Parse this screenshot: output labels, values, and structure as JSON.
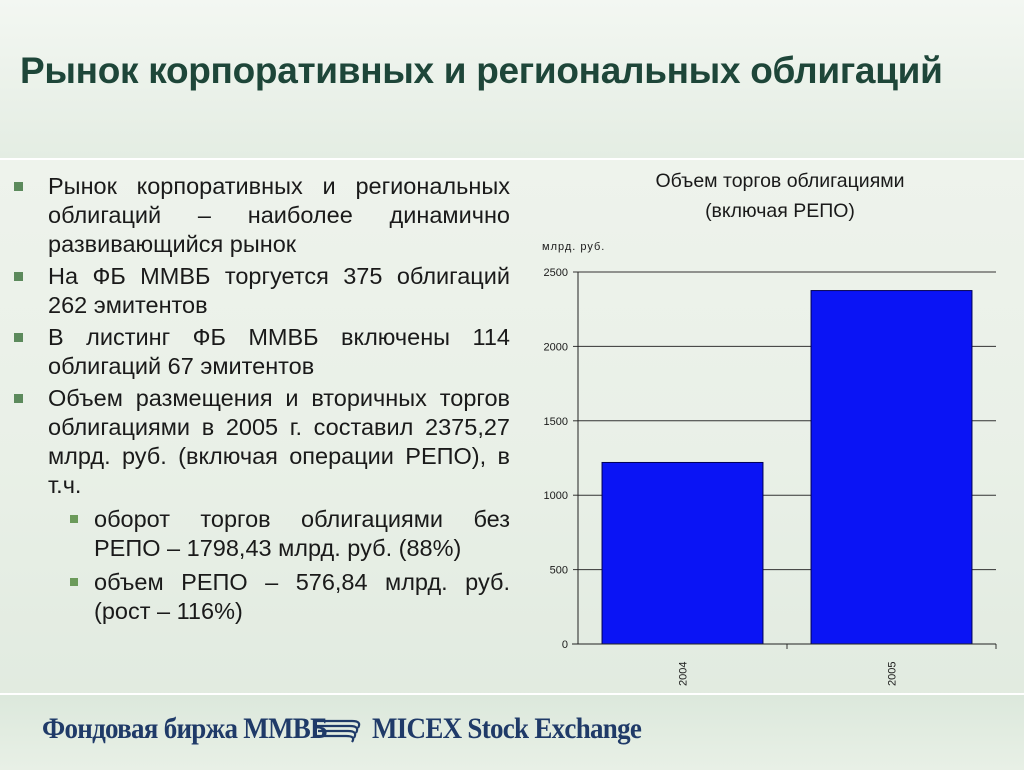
{
  "slide": {
    "title": "Рынок корпоративных и региональных облигаций",
    "bullets": [
      {
        "text": "Рынок корпоративных и региональных облигаций – наиболее динамично развивающийся рынок"
      },
      {
        "text": "На ФБ ММВБ торгуется 375 облигаций 262 эмитентов"
      },
      {
        "text": "В листинг ФБ ММВБ включены 114 облигаций 67 эмитентов"
      },
      {
        "text": "Объем размещения и вторичных торгов облигациями в 2005 г. составил 2375,27 млрд. руб. (включая операции РЕПО), в т.ч.",
        "sub": [
          {
            "text": "оборот торгов облигациями без РЕПО – 1798,43 млрд. руб. (88%)"
          },
          {
            "text": "объем РЕПО – 576,84 млрд. руб. (рост – 116%)"
          }
        ]
      }
    ]
  },
  "chart_data": {
    "type": "bar",
    "title_line1": "Объем торгов облигациями",
    "title_line2": "(включая РЕПО)",
    "ylabel": "млрд. руб.",
    "xlabel": "",
    "categories": [
      "2004",
      "2005"
    ],
    "values": [
      1220,
      2375.27
    ],
    "ylim": [
      0,
      2500
    ],
    "yticks": [
      "0",
      "500",
      "1000",
      "1500",
      "2000",
      "2500"
    ],
    "grid": true,
    "legend": false,
    "bar_color": "#0a14f5"
  },
  "footer": {
    "logo_ru": "Фондовая биржа ММВБ",
    "logo_en": "MICEX Stock Exchange",
    "logo_icon": "micex-emblem-icon"
  }
}
